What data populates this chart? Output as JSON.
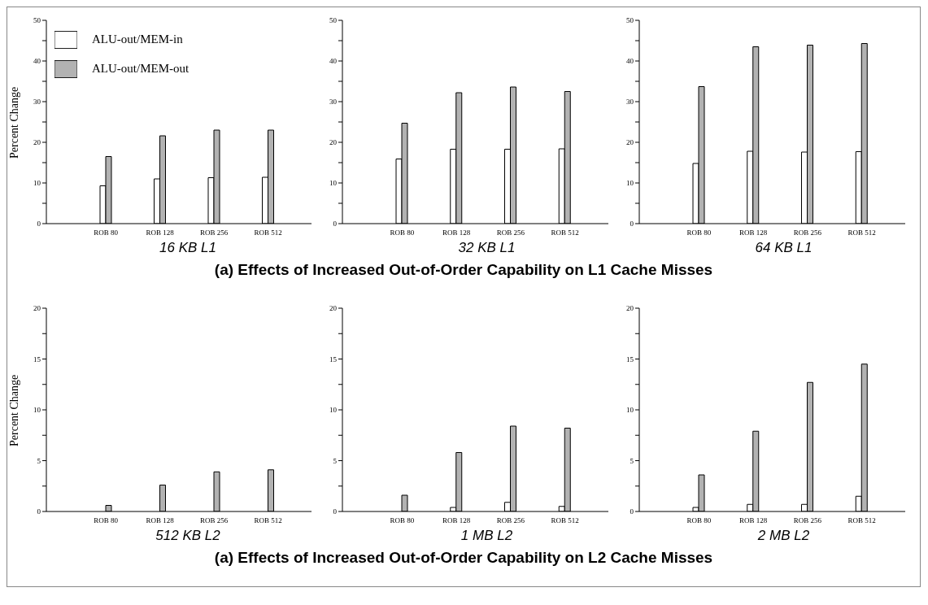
{
  "chart_data": [
    {
      "type": "bar",
      "xlabel": "16 KB L1",
      "ylabel": "Percent Change",
      "categories": [
        "ROB 80",
        "ROB 128",
        "ROB 256",
        "ROB 512"
      ],
      "series": [
        {
          "name": "ALU-out/MEM-in",
          "color": "#ffffff",
          "values": [
            9.3,
            11.0,
            11.3,
            11.4
          ]
        },
        {
          "name": "ALU-out/MEM-out",
          "color": "#b2b2b2",
          "values": [
            16.5,
            21.6,
            23.0,
            23.0
          ]
        }
      ],
      "ylim": [
        0,
        50
      ],
      "yticks": [
        0,
        {
          "value": 5,
          "label": null
        },
        10,
        {
          "value": 15,
          "label": null
        },
        20,
        {
          "value": 25,
          "label": null
        },
        30,
        {
          "value": 35,
          "label": null
        },
        40,
        {
          "value": 45,
          "label": null
        },
        50
      ],
      "legend": "top left"
    },
    {
      "type": "bar",
      "xlabel": "32 KB L1",
      "categories": [
        "ROB 80",
        "ROB 128",
        "ROB 256",
        "ROB 512"
      ],
      "series": [
        {
          "color": "#ffffff",
          "values": [
            15.9,
            18.3,
            18.3,
            18.4
          ]
        },
        {
          "color": "#b2b2b2",
          "values": [
            24.7,
            32.2,
            33.6,
            32.5
          ]
        }
      ],
      "ylim": [
        0,
        50
      ],
      "yticks": [
        0,
        {
          "value": 5,
          "label": null
        },
        10,
        {
          "value": 15,
          "label": null
        },
        20,
        {
          "value": 25,
          "label": null
        },
        30,
        {
          "value": 35,
          "label": null
        },
        40,
        {
          "value": 45,
          "label": null
        },
        50
      ],
      "annotations": [
        "(a) Effects of Increased Out-of-Order Capability on L1 Cache Misses"
      ]
    },
    {
      "type": "bar",
      "xlabel": "64 KB L1",
      "categories": [
        "ROB 80",
        "ROB 128",
        "ROB 256",
        "ROB 512"
      ],
      "series": [
        {
          "color": "#ffffff",
          "values": [
            14.8,
            17.8,
            17.6,
            17.7
          ]
        },
        {
          "color": "#b2b2b2",
          "values": [
            33.7,
            43.5,
            43.9,
            44.3
          ]
        }
      ],
      "ylim": [
        0,
        50
      ],
      "yticks": [
        0,
        {
          "value": 5,
          "label": null
        },
        10,
        {
          "value": 15,
          "label": null
        },
        20,
        {
          "value": 25,
          "label": null
        },
        30,
        {
          "value": 35,
          "label": null
        },
        40,
        {
          "value": 45,
          "label": null
        },
        50
      ]
    },
    {
      "type": "bar",
      "xlabel": "512 KB L2",
      "ylabel": "Percent Change",
      "categories": [
        "ROB 80",
        "ROB 128",
        "ROB 256",
        "ROB 512"
      ],
      "series": [
        {
          "color": "#ffffff",
          "values": [
            0,
            0,
            0,
            0
          ]
        },
        {
          "color": "#b2b2b2",
          "values": [
            0.6,
            2.6,
            3.9,
            4.1
          ]
        }
      ],
      "ylim": [
        0,
        20
      ],
      "yticks": [
        0,
        {
          "value": 2.5,
          "label": null
        },
        5,
        {
          "value": 7.5,
          "label": null
        },
        10,
        {
          "value": 12.5,
          "label": null
        },
        15,
        {
          "value": 17.5,
          "label": null
        },
        20
      ]
    },
    {
      "type": "bar",
      "xlabel": "1 MB L2",
      "categories": [
        "ROB 80",
        "ROB 128",
        "ROB 256",
        "ROB 512"
      ],
      "series": [
        {
          "color": "#ffffff",
          "values": [
            0,
            0.4,
            0.9,
            0.5
          ]
        },
        {
          "color": "#b2b2b2",
          "values": [
            1.6,
            5.8,
            8.4,
            8.2
          ]
        }
      ],
      "ylim": [
        0,
        20
      ],
      "yticks": [
        0,
        {
          "value": 2.5,
          "label": null
        },
        5,
        {
          "value": 7.5,
          "label": null
        },
        10,
        {
          "value": 12.5,
          "label": null
        },
        15,
        {
          "value": 17.5,
          "label": null
        },
        20
      ],
      "annotations": [
        "(a) Effects of Increased Out-of-Order Capability on L2 Cache Misses"
      ]
    },
    {
      "type": "bar",
      "xlabel": "2 MB L2",
      "categories": [
        "ROB 80",
        "ROB 128",
        "ROB 256",
        "ROB 512"
      ],
      "series": [
        {
          "color": "#ffffff",
          "values": [
            0.4,
            0.7,
            0.7,
            1.5
          ]
        },
        {
          "color": "#b2b2b2",
          "values": [
            3.6,
            7.9,
            12.7,
            14.5
          ]
        }
      ],
      "ylim": [
        0,
        20
      ],
      "yticks": [
        0,
        {
          "value": 2.5,
          "label": null
        },
        5,
        {
          "value": 7.5,
          "label": null
        },
        10,
        {
          "value": 12.5,
          "label": null
        },
        15,
        {
          "value": 17.5,
          "label": null
        },
        20
      ]
    }
  ]
}
